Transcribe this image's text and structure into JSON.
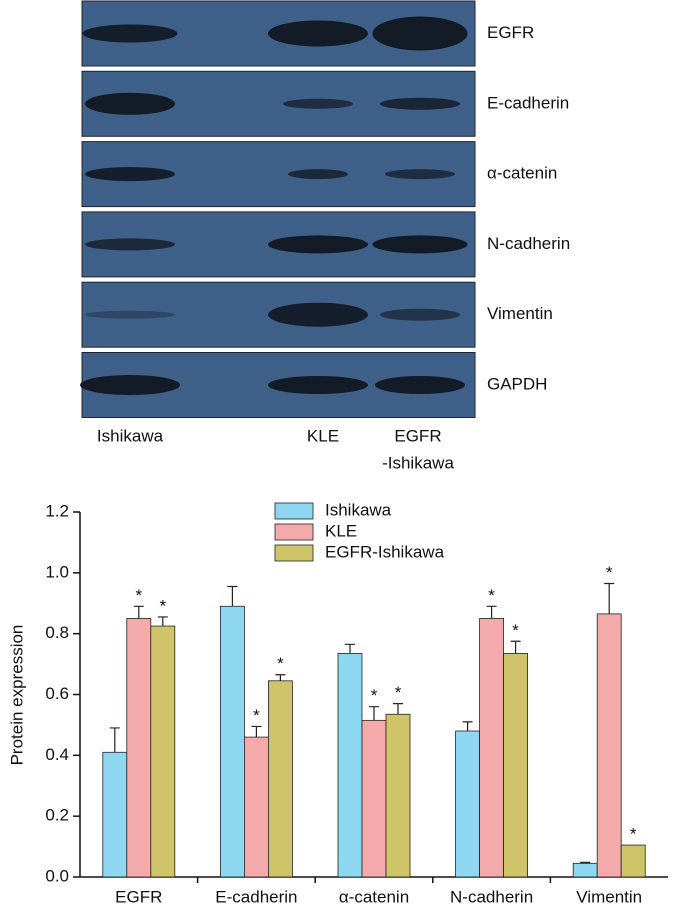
{
  "blot": {
    "bands": [
      "EGFR",
      "E-cadherin",
      "α-catenin",
      "N-cadherin",
      "Vimentin",
      "GAPDH"
    ],
    "lanes": [
      [
        "Ishikawa"
      ],
      [
        "KLE"
      ],
      [
        "EGFR",
        "-Ishikawa"
      ]
    ]
  },
  "chart_data": {
    "type": "bar",
    "ylabel": "Protein expression",
    "categories": [
      "EGFR",
      "E-cadherin",
      "α-catenin",
      "N-cadherin",
      "Vimentin"
    ],
    "series": [
      {
        "name": "Ishikawa",
        "color": "#8dd8f0",
        "values": [
          0.41,
          0.89,
          0.735,
          0.48,
          0.045
        ],
        "errors": [
          0.08,
          0.065,
          0.03,
          0.03,
          0.003
        ]
      },
      {
        "name": "KLE",
        "color": "#f4a9ab",
        "values": [
          0.85,
          0.46,
          0.515,
          0.85,
          0.865
        ],
        "errors": [
          0.04,
          0.035,
          0.045,
          0.04,
          0.1
        ],
        "significance": [
          "*",
          "*",
          "*",
          "*",
          "*"
        ]
      },
      {
        "name": "EGFR-Ishikawa",
        "color": "#cfc46a",
        "values": [
          0.825,
          0.645,
          0.535,
          0.735,
          0.105
        ],
        "errors": [
          0.03,
          0.02,
          0.035,
          0.04,
          null
        ],
        "significance": [
          "*",
          "*",
          "*",
          "*",
          "*"
        ]
      }
    ],
    "ylim": [
      0,
      1.2
    ],
    "yticks": [
      {
        "value": 0,
        "label": "0.0"
      },
      0.2,
      0.4,
      0.6,
      0.8,
      {
        "value": 1,
        "label": "1.0"
      },
      1.2
    ]
  }
}
